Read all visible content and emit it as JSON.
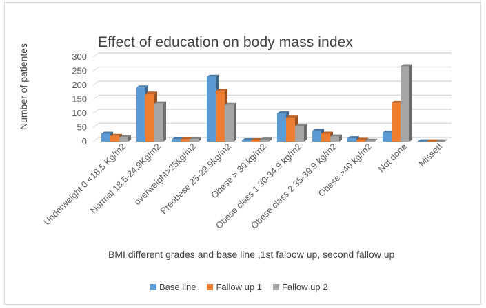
{
  "chart_data": {
    "type": "bar",
    "style": "3d-clustered-column",
    "title": "Effect of education on body mass index",
    "xlabel": "BMI different grades and base line ,1st faloow up, second fallow up",
    "ylabel": "Number of patientes",
    "ylim": [
      0,
      300
    ],
    "yticks": [
      0,
      50,
      100,
      150,
      200,
      250,
      300
    ],
    "grid": true,
    "legend_position": "bottom",
    "categories": [
      "Underweight 0 <18.5 Kg/m2",
      "Normal 18.5-24.9Kg/m2",
      "overweight>25kg/m2",
      "Preobese 25-29.9kg/m2",
      "Obese > 30 kg/m2",
      "Obese class 1 30-34.9 kg/m2",
      "Obese class 2 35-39.9 kg/m2",
      "Obese >40 kg/m2",
      "Not done",
      "Missed"
    ],
    "series": [
      {
        "name": "Base line",
        "color": "#5B9BD5",
        "values": [
          28,
          192,
          8,
          230,
          5,
          100,
          38,
          12,
          32,
          1
        ]
      },
      {
        "name": "Fallow up 1",
        "color": "#ED7D31",
        "values": [
          20,
          170,
          8,
          180,
          5,
          85,
          28,
          6,
          137,
          1
        ]
      },
      {
        "name": "Fallow up 2",
        "color": "#A5A5A5",
        "values": [
          15,
          135,
          9,
          130,
          7,
          55,
          18,
          3,
          267,
          1
        ]
      }
    ]
  }
}
